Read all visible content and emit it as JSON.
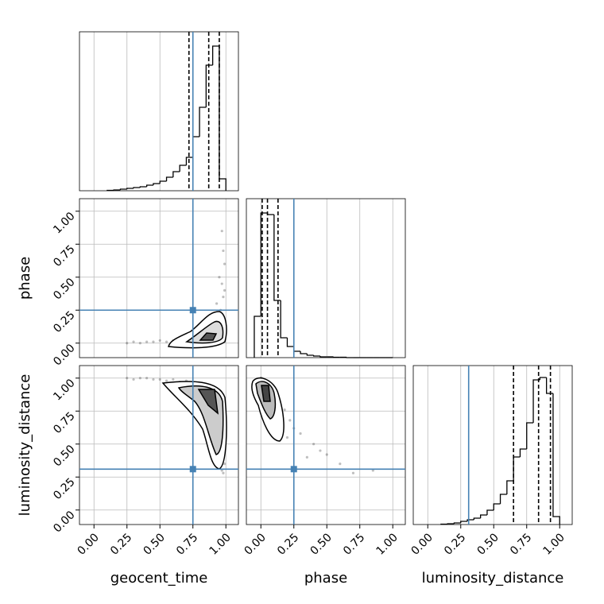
{
  "chart_data": {
    "type": "corner",
    "lim": [
      -0.11,
      1.095
    ],
    "ticks": [
      {
        "value": 0,
        "label": "0.00"
      },
      {
        "value": 0.25,
        "label": "0.25"
      },
      {
        "value": 0.5,
        "label": "0.50"
      },
      {
        "value": 0.75,
        "label": "0.75"
      },
      {
        "value": 1,
        "label": "1.00"
      }
    ],
    "hist_ylim": [
      0,
      200
    ],
    "grid": true,
    "truth_color": "#4682b4",
    "parameters": [
      {
        "name": "geocent_time",
        "truth": 0.75,
        "quantiles": [
          0.72,
          0.87,
          0.95
        ],
        "bins": [
          0.1,
          0.15,
          0.2,
          0.25,
          0.3,
          0.35,
          0.4,
          0.45,
          0.5,
          0.55,
          0.6,
          0.65,
          0.7,
          0.75,
          0.8,
          0.85,
          0.9,
          0.95,
          1.0
        ],
        "counts": [
          0.5,
          1,
          2,
          3,
          4,
          5,
          7,
          9,
          12,
          17,
          24,
          32,
          42,
          68,
          105,
          158,
          182,
          15
        ]
      },
      {
        "name": "phase",
        "truth": 0.25,
        "quantiles": [
          0.01,
          0.05,
          0.13
        ],
        "bins": [
          -0.05,
          0,
          0.05,
          0.1,
          0.15,
          0.2,
          0.25,
          0.3,
          0.35,
          0.4,
          0.45,
          0.5,
          0.55,
          0.6,
          0.65,
          0.7,
          0.75,
          0.8,
          0.85,
          0.9,
          0.95,
          1.0
        ],
        "counts": [
          52,
          182,
          180,
          72,
          25,
          14,
          8,
          5,
          3,
          2,
          1,
          1,
          0.5,
          0.5,
          0,
          0,
          0,
          0,
          0,
          0,
          0
        ]
      },
      {
        "name": "luminosity_distance",
        "truth": 0.31,
        "quantiles": [
          0.65,
          0.84,
          0.93
        ],
        "bins": [
          0.1,
          0.15,
          0.2,
          0.25,
          0.3,
          0.35,
          0.4,
          0.45,
          0.5,
          0.55,
          0.6,
          0.65,
          0.7,
          0.75,
          0.8,
          0.85,
          0.9,
          0.95,
          1.0
        ],
        "counts": [
          0.5,
          1,
          2,
          4,
          6,
          8,
          12,
          18,
          26,
          38,
          55,
          85,
          95,
          128,
          182,
          185,
          165,
          10
        ]
      }
    ],
    "samples": [
      [
        0.96,
        0.93,
        0.9,
        0.88,
        0.95,
        0.97,
        0.98,
        0.85,
        0.8,
        0.75,
        0.7,
        0.65,
        0.6,
        0.55,
        0.5,
        0.45,
        0.4,
        0.35,
        0.3,
        0.25,
        0.92,
        0.94,
        0.96,
        0.97,
        0.99,
        0.98,
        0.91,
        0.87,
        0.83,
        0.89,
        0.93,
        0.95,
        0.97,
        0.78,
        0.72,
        0.86,
        0.94,
        0.99,
        0.9,
        0.96
      ],
      [
        0.05,
        0.08,
        0.04,
        0.06,
        0.12,
        0.2,
        0.35,
        0.03,
        0.05,
        0.02,
        0.04,
        0.03,
        0.02,
        0.01,
        0.02,
        0.01,
        0.01,
        0.0,
        0.01,
        0.0,
        0.15,
        0.1,
        0.25,
        0.45,
        0.6,
        0.7,
        0.07,
        0.09,
        0.06,
        0.18,
        0.3,
        0.5,
        0.85,
        0.04,
        0.05,
        0.11,
        0.22,
        0.4,
        0.13,
        0.08
      ],
      [
        0.9,
        0.85,
        0.92,
        0.88,
        0.72,
        0.55,
        0.4,
        0.95,
        0.96,
        0.97,
        0.98,
        0.97,
        0.99,
        0.98,
        0.99,
        0.99,
        1.0,
        1.0,
        0.99,
        1.0,
        0.78,
        0.8,
        0.62,
        0.45,
        0.35,
        0.28,
        0.87,
        0.9,
        0.93,
        0.76,
        0.58,
        0.42,
        0.3,
        0.95,
        0.96,
        0.84,
        0.68,
        0.5,
        0.82,
        0.88
      ]
    ]
  }
}
